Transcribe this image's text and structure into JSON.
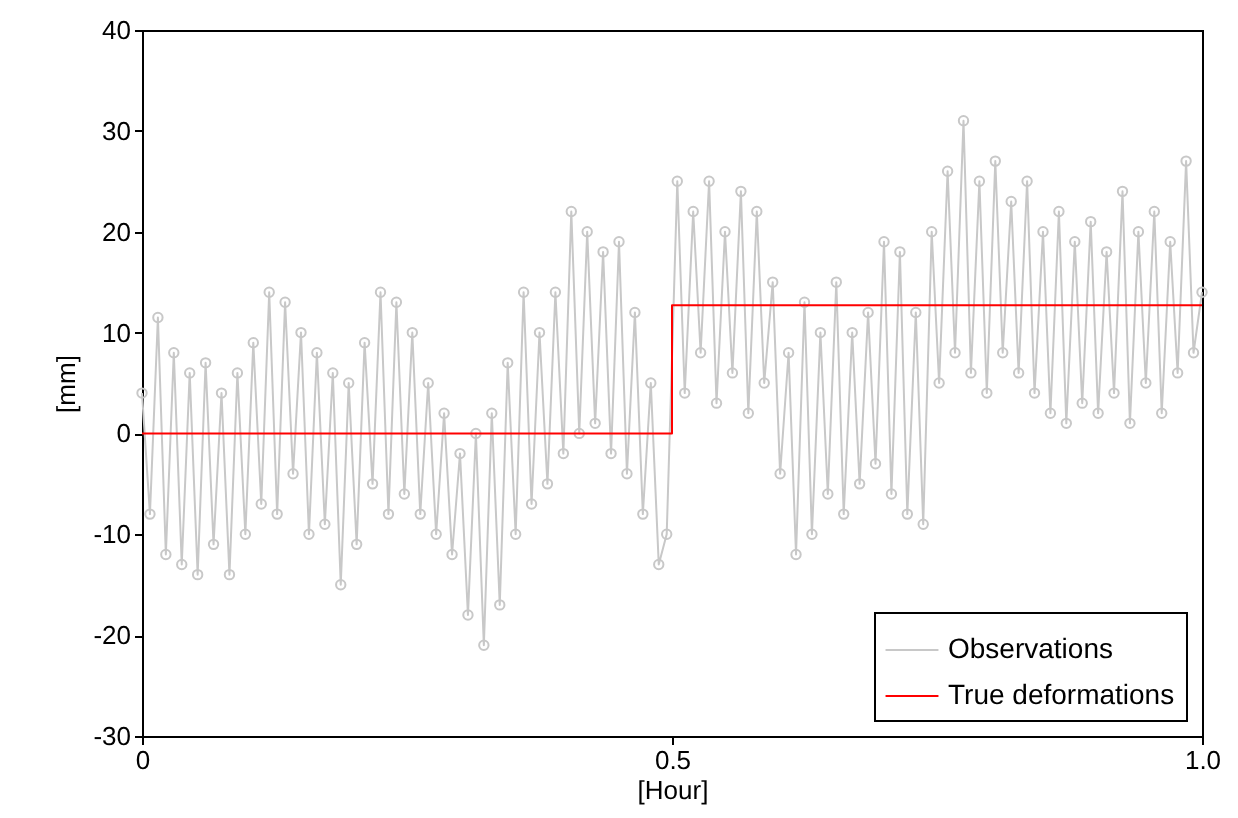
{
  "chart_data": {
    "type": "line",
    "xlabel": "[Hour]",
    "ylabel": "[mm]",
    "xlim": [
      0,
      1
    ],
    "xticks": [
      0,
      0.5,
      {
        "value": 1,
        "label": "1.0"
      }
    ],
    "ylim": [
      -30,
      40
    ],
    "yticks": [
      -30,
      -20,
      -10,
      0,
      10,
      20,
      30,
      40
    ],
    "grid": false,
    "legend": "bottom right",
    "series": [
      {
        "name": "Observations",
        "color": "#c8c8c8",
        "marker": "circle",
        "x": [
          0,
          0.0075,
          0.015,
          0.0225,
          0.03,
          0.0375,
          0.045,
          0.0525,
          0.06,
          0.0675,
          0.075,
          0.0825,
          0.09,
          0.0975,
          0.105,
          0.1125,
          0.12,
          0.1275,
          0.135,
          0.1425,
          0.15,
          0.1575,
          0.165,
          0.1725,
          0.18,
          0.1875,
          0.195,
          0.2025,
          0.21,
          0.2175,
          0.225,
          0.2325,
          0.24,
          0.2475,
          0.255,
          0.2625,
          0.27,
          0.2775,
          0.285,
          0.2925,
          0.3,
          0.3075,
          0.315,
          0.3225,
          0.33,
          0.3375,
          0.345,
          0.3525,
          0.36,
          0.3675,
          0.375,
          0.3825,
          0.39,
          0.3975,
          0.405,
          0.4125,
          0.42,
          0.4275,
          0.435,
          0.4425,
          0.45,
          0.4575,
          0.465,
          0.4725,
          0.48,
          0.4875,
          0.495,
          0.505,
          0.512,
          0.52,
          0.527,
          0.535,
          0.542,
          0.55,
          0.557,
          0.565,
          0.572,
          0.58,
          0.587,
          0.595,
          0.602,
          0.61,
          0.617,
          0.625,
          0.632,
          0.64,
          0.647,
          0.655,
          0.662,
          0.67,
          0.677,
          0.685,
          0.692,
          0.7,
          0.707,
          0.715,
          0.722,
          0.73,
          0.737,
          0.745,
          0.752,
          0.76,
          0.767,
          0.775,
          0.782,
          0.79,
          0.797,
          0.805,
          0.812,
          0.82,
          0.827,
          0.835,
          0.842,
          0.85,
          0.857,
          0.865,
          0.872,
          0.88,
          0.887,
          0.895,
          0.902,
          0.91,
          0.917,
          0.925,
          0.932,
          0.94,
          0.947,
          0.955,
          0.962,
          0.97,
          0.977,
          0.985,
          0.992,
          1
        ],
        "values": [
          4,
          -8,
          11.5,
          -12,
          8,
          -13,
          6,
          -14,
          7,
          -11,
          4,
          -14,
          6,
          -10,
          9,
          -7,
          14,
          -8,
          13,
          -4,
          10,
          -10,
          8,
          -9,
          6,
          -15,
          5,
          -11,
          9,
          -5,
          14,
          -8,
          13,
          -6,
          10,
          -8,
          5,
          -10,
          2,
          -12,
          -2,
          -18,
          0,
          -21,
          2,
          -17,
          7,
          -10,
          14,
          -7,
          10,
          -5,
          14,
          -2,
          22,
          0,
          20,
          1,
          18,
          -2,
          19,
          -4,
          12,
          -8,
          5,
          -13,
          -10,
          25,
          4,
          22,
          8,
          25,
          3,
          20,
          6,
          24,
          2,
          22,
          5,
          15,
          -4,
          8,
          -12,
          13,
          -10,
          10,
          -6,
          15,
          -8,
          10,
          -5,
          12,
          -3,
          19,
          -6,
          18,
          -8,
          12,
          -9,
          20,
          5,
          26,
          8,
          31,
          6,
          25,
          4,
          27,
          8,
          23,
          6,
          25,
          4,
          20,
          2,
          22,
          1,
          19,
          3,
          21,
          2,
          18,
          4,
          24,
          1,
          20,
          5,
          22,
          2,
          19,
          6,
          27,
          8,
          14
        ]
      },
      {
        "name": "True deformations",
        "color": "#ff0000",
        "type": "step",
        "marker": "none",
        "x": [
          0,
          0.5,
          1
        ],
        "values": [
          0,
          12.7,
          12.7
        ]
      }
    ]
  }
}
